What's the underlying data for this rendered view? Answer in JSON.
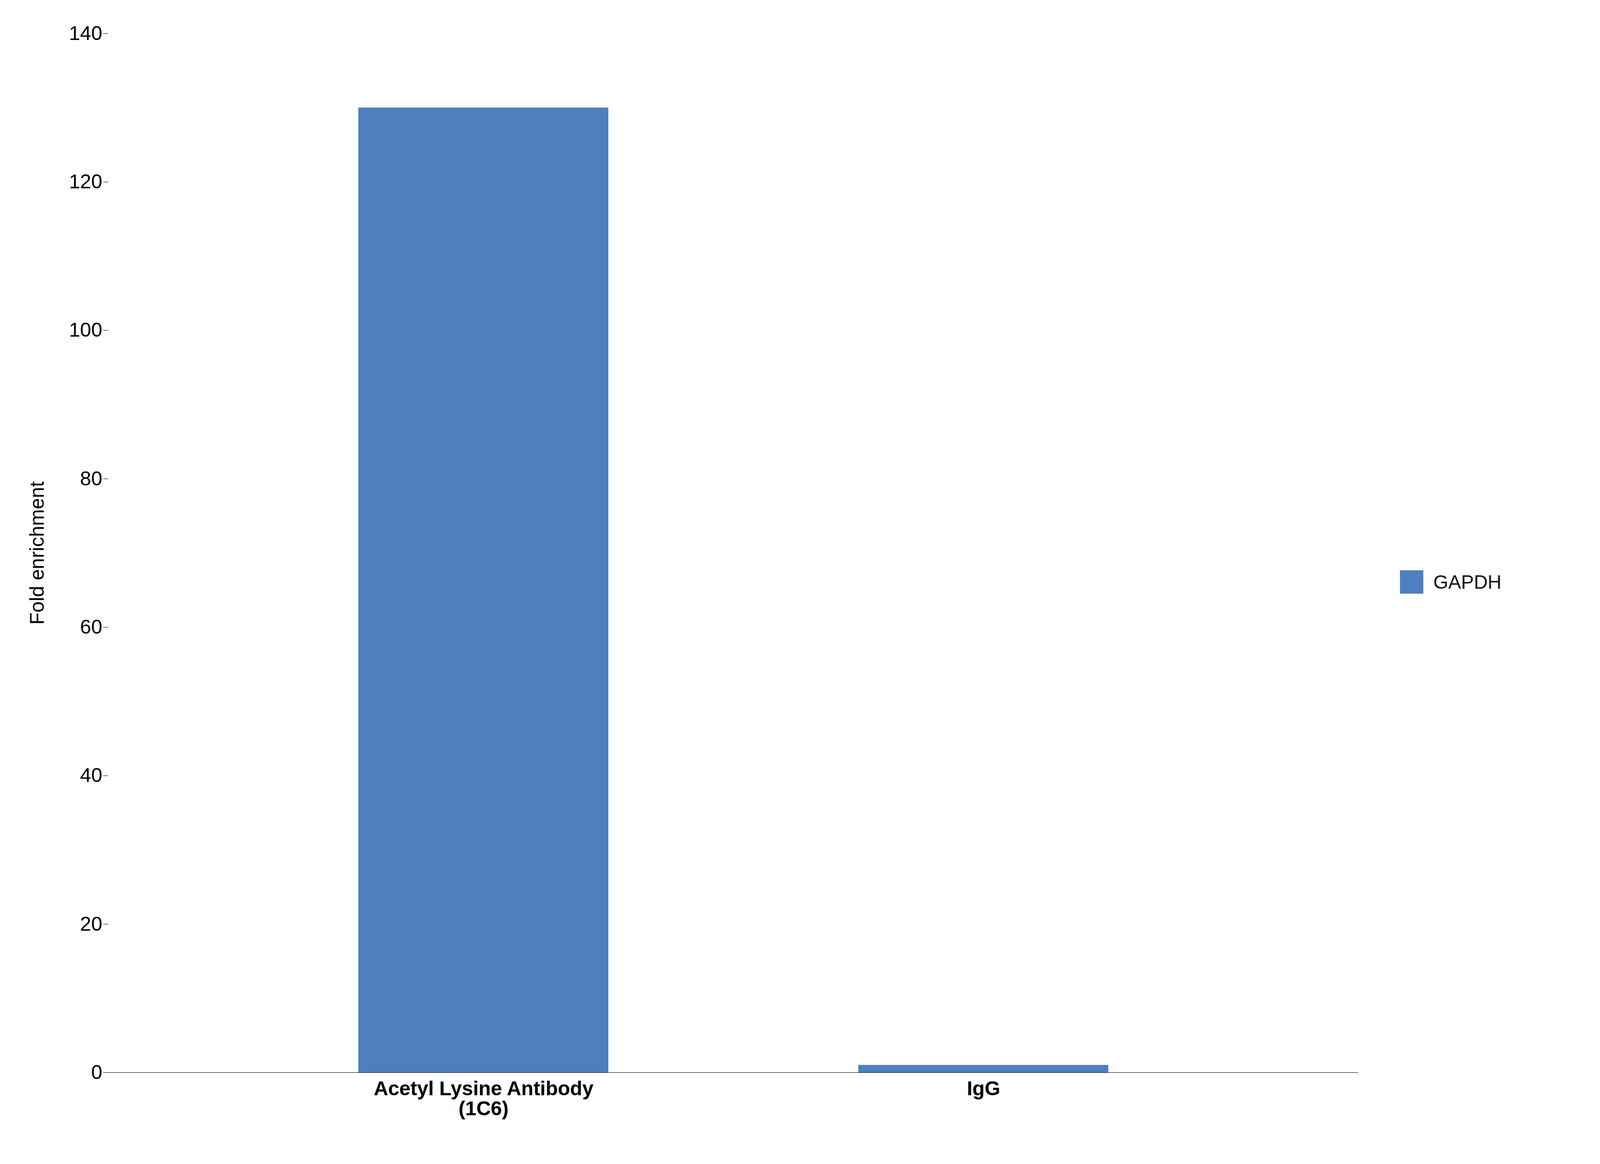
{
  "chart_data": {
    "type": "bar",
    "categories": [
      "Acetyl Lysine Antibody\n(1C6)",
      "IgG"
    ],
    "series": [
      {
        "name": "GAPDH",
        "color": "#4f7fbe",
        "values": [
          130,
          1
        ]
      }
    ],
    "ylabel": "Fold enrichment",
    "ylim": [
      0,
      140
    ],
    "yticks": [
      0,
      20,
      40,
      60,
      80,
      100,
      120,
      140
    ],
    "grid": false,
    "legend": "right"
  }
}
